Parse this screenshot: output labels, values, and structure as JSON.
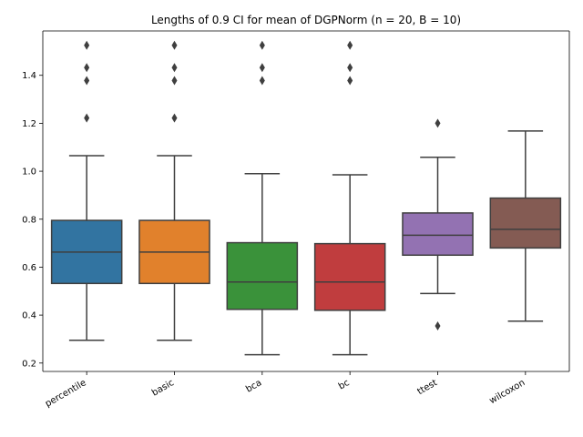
{
  "chart_data": {
    "type": "box",
    "title": "Lengths of 0.9 CI for mean of DGPNorm (n = 20, B = 10)",
    "xlabel": "",
    "ylabel": "",
    "ylim": [
      0.165,
      1.585
    ],
    "yticks": [
      0.2,
      0.4,
      0.6,
      0.8,
      1.0,
      1.2,
      1.4
    ],
    "ytick_labels": [
      "0.2",
      "0.4",
      "0.6",
      "0.8",
      "1.0",
      "1.2",
      "1.4"
    ],
    "categories": [
      "percentile",
      "basic",
      "bca",
      "bc",
      "ttest",
      "wilcoxon"
    ],
    "grid": false,
    "series": [
      {
        "category": "percentile",
        "color": "#3274a1",
        "whisker_low": 0.295,
        "q1": 0.532,
        "median": 0.663,
        "q3": 0.795,
        "whisker_high": 1.065,
        "outliers": [
          1.222,
          1.378,
          1.432,
          1.525
        ]
      },
      {
        "category": "basic",
        "color": "#e1812c",
        "whisker_low": 0.295,
        "q1": 0.532,
        "median": 0.663,
        "q3": 0.795,
        "whisker_high": 1.065,
        "outliers": [
          1.222,
          1.378,
          1.432,
          1.525
        ]
      },
      {
        "category": "bca",
        "color": "#3a923a",
        "whisker_low": 0.235,
        "q1": 0.424,
        "median": 0.538,
        "q3": 0.702,
        "whisker_high": 0.99,
        "outliers": [
          1.378,
          1.432,
          1.525
        ]
      },
      {
        "category": "bc",
        "color": "#c03d3e",
        "whisker_low": 0.235,
        "q1": 0.42,
        "median": 0.538,
        "q3": 0.698,
        "whisker_high": 0.985,
        "outliers": [
          1.378,
          1.432,
          1.525
        ]
      },
      {
        "category": "ttest",
        "color": "#9372b2",
        "whisker_low": 0.49,
        "q1": 0.65,
        "median": 0.733,
        "q3": 0.826,
        "whisker_high": 1.058,
        "outliers": [
          0.355,
          1.2
        ]
      },
      {
        "category": "wilcoxon",
        "color": "#845b53",
        "whisker_low": 0.375,
        "q1": 0.68,
        "median": 0.758,
        "q3": 0.888,
        "whisker_high": 1.168,
        "outliers": []
      }
    ]
  }
}
